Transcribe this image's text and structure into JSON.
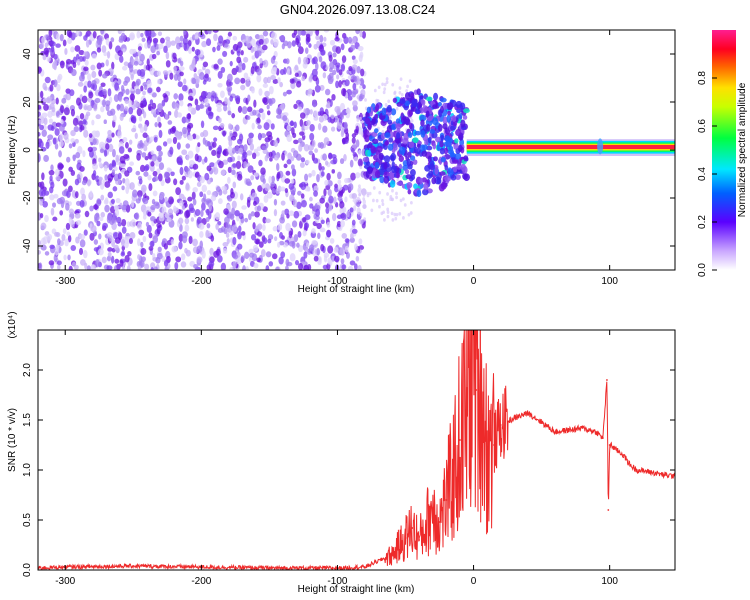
{
  "title": "GN04.2026.097.13.08.C24",
  "colors": {
    "spectrogram_dots": "#6a14e0",
    "ridge": "#ff2040",
    "snr_line": "#ee2a2a"
  },
  "chart_data": [
    {
      "type": "heatmap",
      "xlabel": "Height of straight line (km)",
      "ylabel": "Frequency (Hz)",
      "xlim": [
        -320,
        148
      ],
      "ylim": [
        -50,
        50
      ],
      "xticks": [
        -300,
        -200,
        -100,
        0,
        100
      ],
      "yticks": [
        -40,
        -20,
        0,
        20,
        40
      ],
      "colorbar": {
        "label": "Normalized spectral amplitude",
        "range": [
          0,
          1
        ],
        "ticks": [
          "0.0",
          "0.2",
          "0.4",
          "0.6",
          "0.8"
        ],
        "colormap": "rainbow (white-violet-blue-cyan-green-yellow-red-magenta)"
      },
      "regions": [
        {
          "x": [
            -320,
            -80
          ],
          "freq": [
            -50,
            50
          ],
          "amplitude": 0.15,
          "description": "dense low-amplitude noise"
        },
        {
          "x": [
            -80,
            -5
          ],
          "freq": [
            -18,
            25
          ],
          "amplitude": 0.3,
          "description": "noisy cluster, peak about 0.4"
        },
        {
          "x": [
            -5,
            148
          ],
          "freq": [
            -2,
            4
          ],
          "amplitude": 0.95,
          "description": "narrow carrier line near +1.5 Hz"
        }
      ],
      "features": [
        {
          "x": 93,
          "freq": 1.5,
          "amplitude": 0.4
        }
      ]
    },
    {
      "type": "line",
      "xlabel": "Height of straight line (km)",
      "ylabel": "SNR (10 * v/v)",
      "yscale_label": "(x10⁴)",
      "xlim": [
        -320,
        148
      ],
      "ylim": [
        0,
        2.4
      ],
      "xticks": [
        -300,
        -200,
        -100,
        0,
        100
      ],
      "yticks": [
        "0.0",
        "0.5",
        "1.0",
        "1.5",
        "2.0"
      ],
      "series": [
        {
          "x": [
            -320,
            -300,
            -250,
            -200,
            -150,
            -100,
            -80,
            -60,
            -50,
            -45,
            -40,
            -35,
            -30,
            -25,
            -20,
            -15,
            -10,
            -5,
            0,
            2,
            5,
            10,
            15,
            20,
            30,
            40,
            50,
            60,
            70,
            80,
            90,
            95,
            98,
            99,
            100,
            101,
            105,
            110,
            115,
            120,
            130,
            140,
            148
          ],
          "y": [
            0.02,
            0.03,
            0.04,
            0.03,
            0.02,
            0.02,
            0.03,
            0.15,
            0.32,
            0.42,
            0.3,
            0.45,
            0.62,
            0.48,
            0.7,
            0.95,
            1.3,
            1.6,
            2.35,
            1.8,
            1.9,
            1.2,
            1.25,
            1.45,
            1.52,
            1.57,
            1.48,
            1.38,
            1.4,
            1.42,
            1.38,
            1.32,
            1.9,
            0.6,
            1.25,
            1.25,
            1.2,
            1.15,
            1.05,
            1.0,
            0.98,
            0.95,
            0.94
          ]
        }
      ]
    }
  ]
}
